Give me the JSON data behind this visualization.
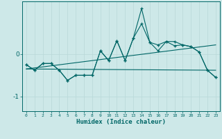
{
  "xlabel": "Humidex (Indice chaleur)",
  "x": [
    0,
    1,
    2,
    3,
    4,
    5,
    6,
    7,
    8,
    9,
    10,
    11,
    12,
    13,
    14,
    15,
    16,
    17,
    18,
    19,
    20,
    21,
    22,
    23
  ],
  "line1": [
    -0.25,
    -0.38,
    -0.22,
    -0.22,
    -0.38,
    -0.62,
    -0.5,
    -0.5,
    -0.5,
    0.08,
    -0.15,
    0.32,
    -0.15,
    0.38,
    0.72,
    0.28,
    0.22,
    0.3,
    0.3,
    0.22,
    0.18,
    0.05,
    -0.38,
    -0.55
  ],
  "line2": [
    -0.25,
    -0.38,
    -0.22,
    -0.22,
    -0.38,
    -0.62,
    -0.5,
    -0.5,
    -0.5,
    0.08,
    -0.15,
    0.32,
    -0.15,
    0.38,
    1.08,
    0.28,
    0.08,
    0.3,
    0.2,
    0.22,
    0.18,
    0.05,
    -0.38,
    -0.55
  ],
  "trend1_x": [
    0,
    23
  ],
  "trend1_y": [
    -0.35,
    0.22
  ],
  "trend2_x": [
    0,
    23
  ],
  "trend2_y": [
    -0.35,
    -0.38
  ],
  "bg_color": "#cde8e8",
  "line_color": "#006666",
  "grid_color": "#b8d8d8",
  "ylim": [
    -1.35,
    1.25
  ],
  "yticks": [
    0,
    -1
  ],
  "xlim": [
    -0.5,
    23.5
  ]
}
